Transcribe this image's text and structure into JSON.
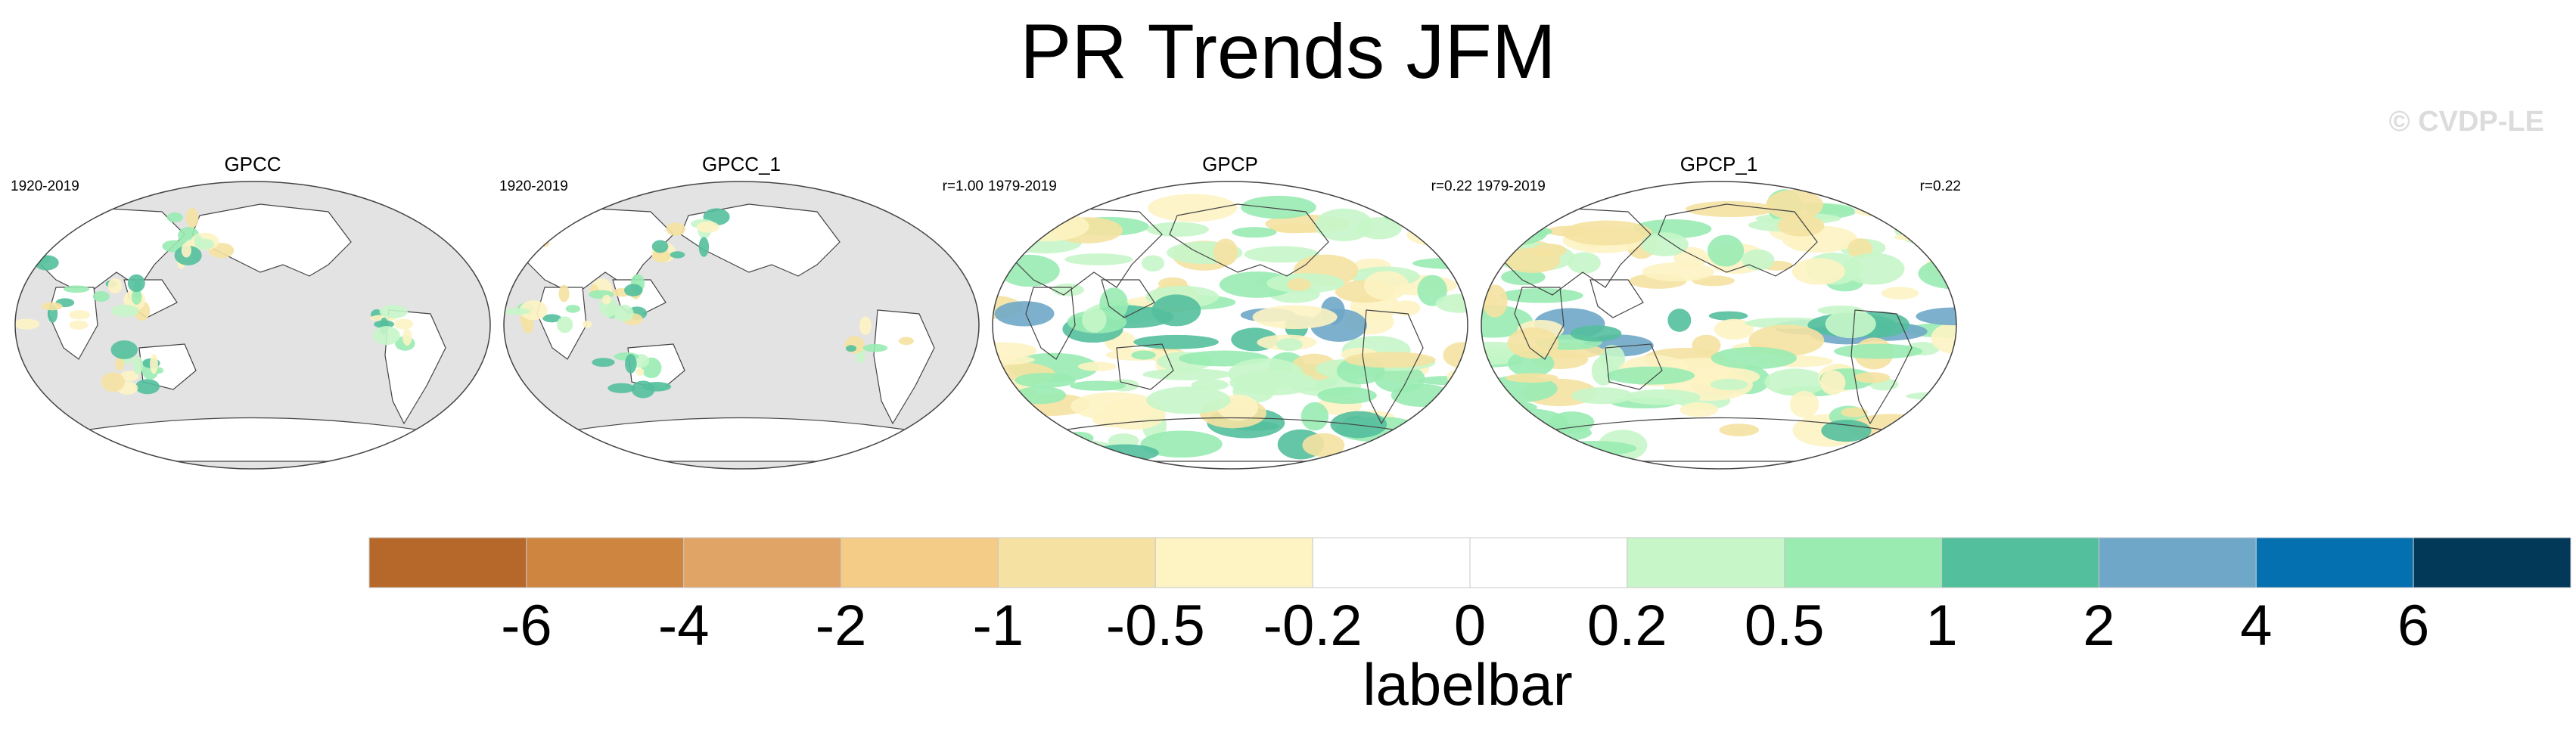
{
  "title": "PR Trends JFM",
  "copyright": "© CVDP-LE",
  "panels": [
    {
      "title": "GPCC",
      "period": "1920-2019",
      "corr": "",
      "coverage": "land"
    },
    {
      "title": "GPCC_1",
      "period": "1920-2019",
      "corr": "r=1.00",
      "coverage": "land"
    },
    {
      "title": "GPCP",
      "period": "1979-2019",
      "corr": "r=0.22",
      "coverage": "global"
    },
    {
      "title": "GPCP_1",
      "period": "1979-2019",
      "corr": "r=0.22",
      "coverage": "global"
    }
  ],
  "labelbar": {
    "label": "labelbar",
    "ticks": [
      "-6",
      "-4",
      "-2",
      "-1",
      "-0.5",
      "-0.2",
      "0",
      "0.2",
      "0.5",
      "1",
      "2",
      "4",
      "6"
    ],
    "colors": [
      "#b5682a",
      "#cd853f",
      "#e0a566",
      "#f4cb87",
      "#f5e2a2",
      "#fdf3c3",
      "#ffffff",
      "#ffffff",
      "#c7f6c9",
      "#99ebb2",
      "#54bf9d",
      "#6fa7c8",
      "#0570b0",
      "#023858"
    ]
  },
  "map_style": {
    "missing_color": "#e3e3e3",
    "ocean_color": "#ffffff",
    "outline_color": "#444444"
  }
}
